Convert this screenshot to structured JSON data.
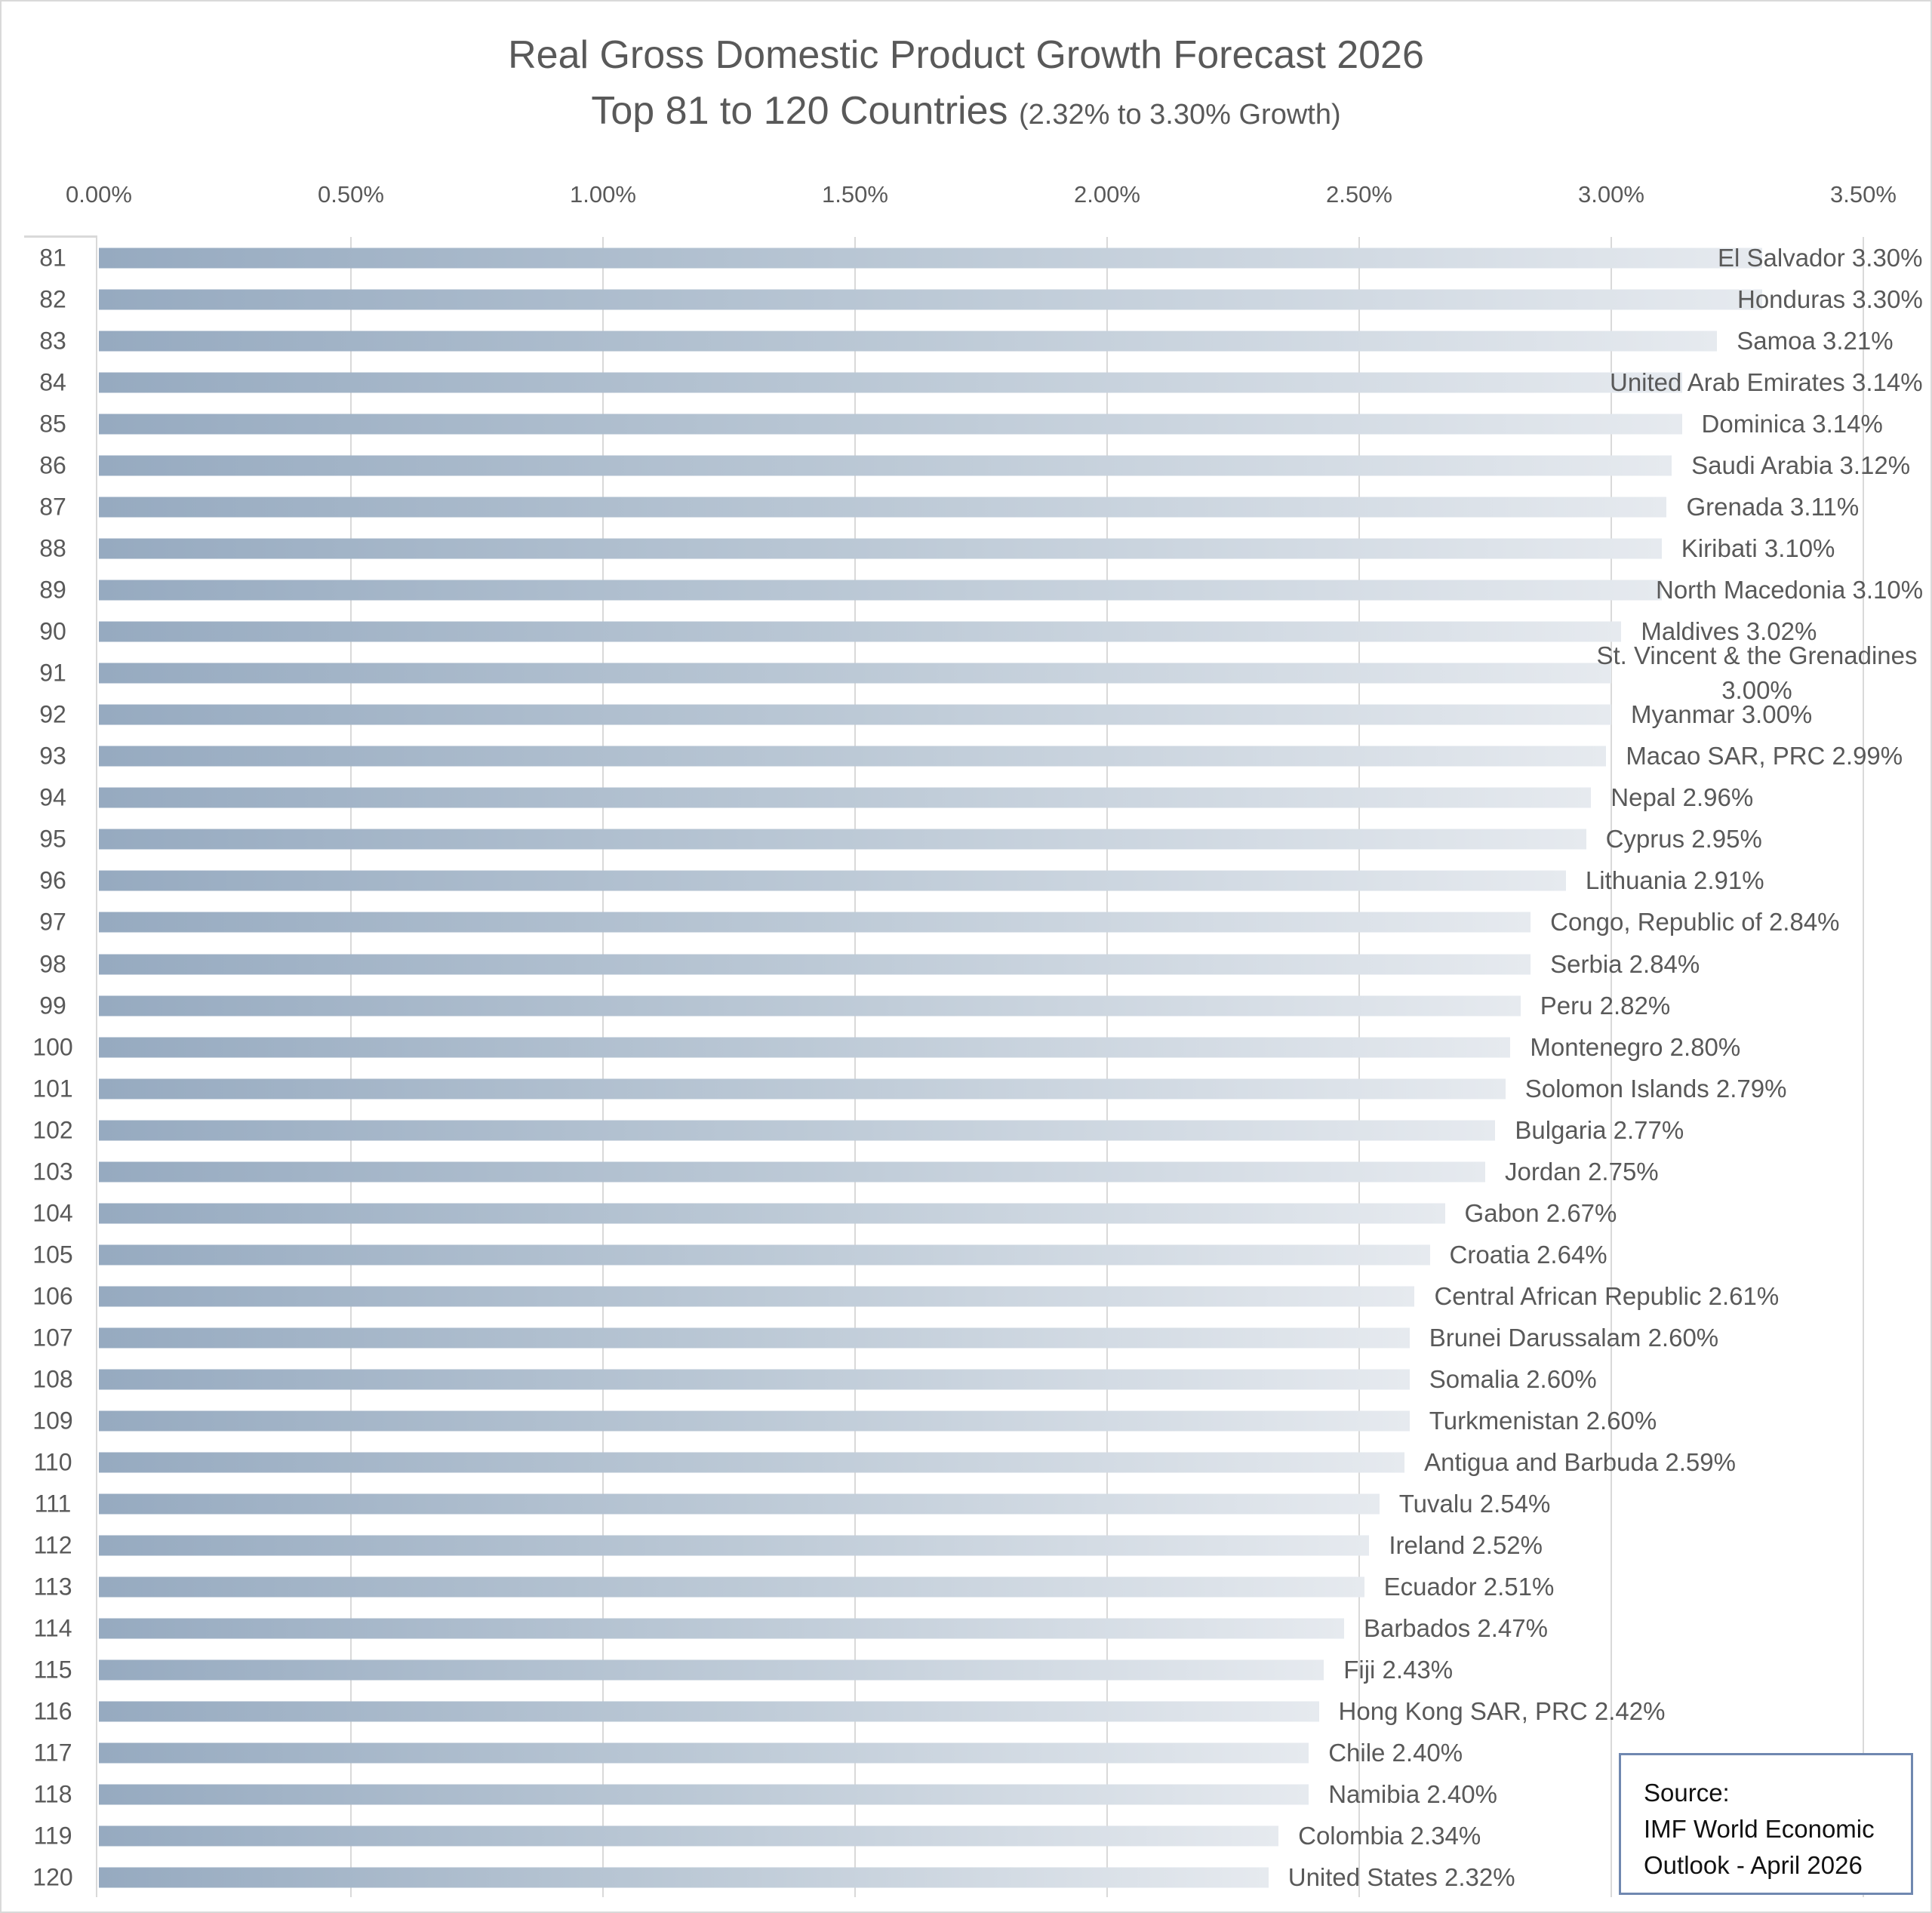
{
  "chart_data": {
    "type": "bar",
    "orientation": "horizontal",
    "title": "Real Gross Domestic Product Growth Forecast 2026",
    "subtitle_main": "Top 81 to 120 Countries",
    "subtitle_note": "(2.32% to 3.30% Growth)",
    "x_ticks": [
      "0.00%",
      "0.50%",
      "1.00%",
      "1.50%",
      "2.00%",
      "2.50%",
      "3.00%",
      "3.50%"
    ],
    "xlim": [
      0,
      3.5
    ],
    "grid": true,
    "colors": {
      "bar_start": "#96aac0",
      "bar_end": "#e6eaef"
    },
    "categories": [
      "81",
      "82",
      "83",
      "84",
      "85",
      "86",
      "87",
      "88",
      "89",
      "90",
      "91",
      "92",
      "93",
      "94",
      "95",
      "96",
      "97",
      "98",
      "99",
      "100",
      "101",
      "102",
      "103",
      "104",
      "105",
      "106",
      "107",
      "108",
      "109",
      "110",
      "111",
      "112",
      "113",
      "114",
      "115",
      "116",
      "117",
      "118",
      "119",
      "120"
    ],
    "countries": [
      "El Salvador",
      "Honduras",
      "Samoa",
      "United Arab Emirates",
      "Dominica",
      "Saudi Arabia",
      "Grenada",
      "Kiribati",
      "North Macedonia",
      "Maldives",
      "St. Vincent & the Grenadines",
      "Myanmar",
      "Macao SAR, PRC",
      "Nepal",
      "Cyprus",
      "Lithuania",
      "Congo, Republic of",
      "Serbia",
      "Peru",
      "Montenegro",
      "Solomon Islands",
      "Bulgaria",
      "Jordan",
      "Gabon",
      "Croatia",
      "Central African Republic",
      "Brunei Darussalam",
      "Somalia",
      "Turkmenistan",
      "Antigua and Barbuda",
      "Tuvalu",
      "Ireland",
      "Ecuador",
      "Barbados",
      "Fiji",
      "Hong Kong SAR, PRC",
      "Chile",
      "Namibia",
      "Colombia",
      "United States"
    ],
    "values": [
      3.3,
      3.3,
      3.21,
      3.14,
      3.14,
      3.12,
      3.11,
      3.1,
      3.1,
      3.02,
      3.0,
      3.0,
      2.99,
      2.96,
      2.95,
      2.91,
      2.84,
      2.84,
      2.82,
      2.8,
      2.79,
      2.77,
      2.75,
      2.67,
      2.64,
      2.61,
      2.6,
      2.6,
      2.6,
      2.59,
      2.54,
      2.52,
      2.51,
      2.47,
      2.43,
      2.42,
      2.4,
      2.4,
      2.34,
      2.32
    ],
    "data_labels": [
      "El Salvador 3.30%",
      "Honduras 3.30%",
      "Samoa 3.21%",
      "United Arab Emirates 3.14%",
      "Dominica 3.14%",
      "Saudi Arabia 3.12%",
      "Grenada 3.11%",
      "Kiribati 3.10%",
      "North Macedonia 3.10%",
      "Maldives 3.02%",
      "St. Vincent & the Grenadines 3.00%",
      "Myanmar 3.00%",
      "Macao SAR, PRC 2.99%",
      "Nepal 2.96%",
      "Cyprus 2.95%",
      "Lithuania 2.91%",
      "Congo, Republic of 2.84%",
      "Serbia 2.84%",
      "Peru 2.82%",
      "Montenegro 2.80%",
      "Solomon Islands 2.79%",
      "Bulgaria 2.77%",
      "Jordan 2.75%",
      "Gabon 2.67%",
      "Croatia 2.64%",
      "Central African Republic 2.61%",
      "Brunei Darussalam 2.60%",
      "Somalia 2.60%",
      "Turkmenistan 2.60%",
      "Antigua and Barbuda 2.59%",
      "Tuvalu 2.54%",
      "Ireland 2.52%",
      "Ecuador 2.51%",
      "Barbados 2.47%",
      "Fiji 2.43%",
      "Hong Kong SAR, PRC 2.42%",
      "Chile 2.40%",
      "Namibia 2.40%",
      "Colombia 2.34%",
      "United States 2.32%"
    ]
  },
  "source": {
    "line1": "Source:",
    "line2": "IMF World Economic",
    "line3": "Outlook - April 2026"
  }
}
